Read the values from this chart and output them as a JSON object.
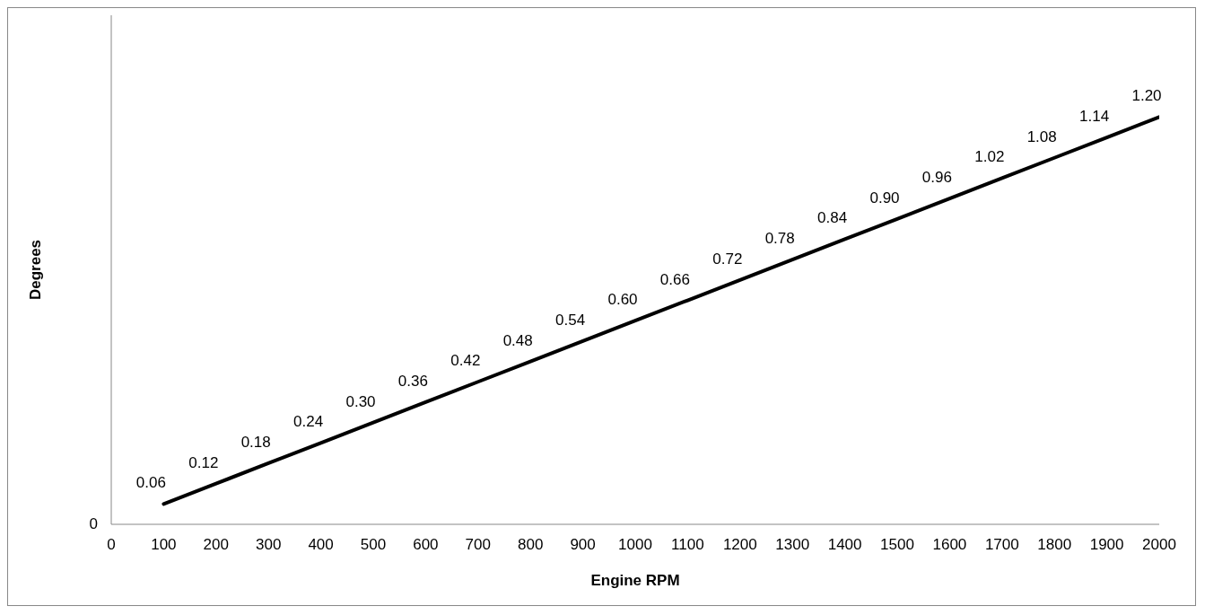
{
  "chart_data": {
    "type": "line",
    "xlabel": "Engine RPM",
    "ylabel": "Degrees",
    "x": [
      100,
      200,
      300,
      400,
      500,
      600,
      700,
      800,
      900,
      1000,
      1100,
      1200,
      1300,
      1400,
      1500,
      1600,
      1700,
      1800,
      1900,
      2000
    ],
    "series": [
      {
        "color": "#000000",
        "values": [
          0.06,
          0.12,
          0.18,
          0.24,
          0.3,
          0.36,
          0.42,
          0.48,
          0.54,
          0.6,
          0.66,
          0.72,
          0.78,
          0.84,
          0.9,
          0.96,
          1.02,
          1.08,
          1.14,
          1.2
        ],
        "value_labels": [
          "0.06",
          "0.12",
          "0.18",
          "0.24",
          "0.30",
          "0.36",
          "0.42",
          "0.48",
          "0.54",
          "0.60",
          "0.66",
          "0.72",
          "0.78",
          "0.84",
          "0.90",
          "0.96",
          "1.02",
          "1.08",
          "1.14",
          "1.20"
        ]
      }
    ],
    "xlim": [
      0,
      2000
    ],
    "xticks": [
      0,
      100,
      200,
      300,
      400,
      500,
      600,
      700,
      800,
      900,
      1000,
      1100,
      1200,
      1300,
      1400,
      1500,
      1600,
      1700,
      1800,
      1900,
      2000
    ],
    "annotations": [
      "0"
    ]
  }
}
